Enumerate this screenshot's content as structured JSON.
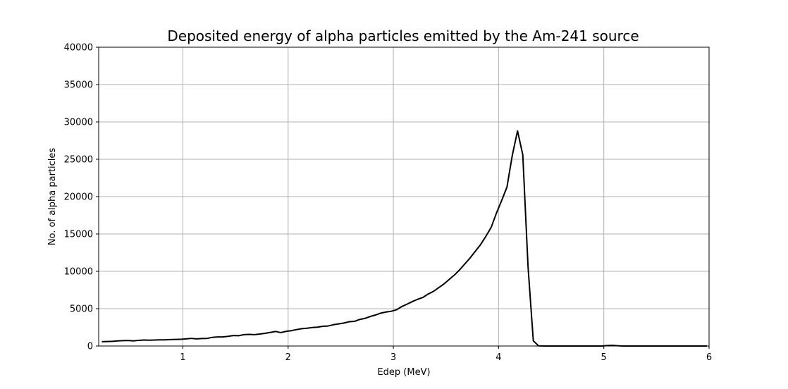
{
  "chart_data": {
    "type": "line",
    "title": "Deposited energy of alpha particles emitted by the Am-241 source",
    "xlabel": "Edep (MeV)",
    "ylabel": "No. of alpha particles",
    "xlim": [
      0.2,
      6.0
    ],
    "ylim": [
      0,
      40000
    ],
    "x_ticks": [
      1,
      2,
      3,
      4,
      5,
      6
    ],
    "y_ticks": [
      0,
      5000,
      10000,
      15000,
      20000,
      25000,
      30000,
      35000,
      40000
    ],
    "grid": true,
    "line_color": "#000000",
    "grid_color": "#b0b0b0",
    "series": [
      {
        "x": [
          0.23,
          0.28,
          0.33,
          0.38,
          0.43,
          0.48,
          0.53,
          0.58,
          0.63,
          0.68,
          0.73,
          0.78,
          0.83,
          0.88,
          0.93,
          0.98,
          1.03,
          1.08,
          1.13,
          1.18,
          1.23,
          1.28,
          1.33,
          1.38,
          1.43,
          1.48,
          1.53,
          1.58,
          1.63,
          1.68,
          1.73,
          1.78,
          1.83,
          1.88,
          1.93,
          1.98,
          2.03,
          2.08,
          2.13,
          2.18,
          2.23,
          2.28,
          2.33,
          2.38,
          2.43,
          2.48,
          2.53,
          2.58,
          2.63,
          2.68,
          2.73,
          2.78,
          2.83,
          2.88,
          2.93,
          2.98,
          3.03,
          3.08,
          3.13,
          3.18,
          3.23,
          3.28,
          3.33,
          3.38,
          3.43,
          3.48,
          3.53,
          3.58,
          3.63,
          3.68,
          3.73,
          3.78,
          3.83,
          3.88,
          3.93,
          3.98,
          4.03,
          4.08,
          4.13,
          4.18,
          4.23,
          4.28,
          4.33,
          4.38,
          4.43,
          4.48,
          4.53,
          4.58,
          4.63,
          4.68,
          4.73,
          4.78,
          4.83,
          4.88,
          4.93,
          4.98,
          5.03,
          5.08,
          5.13,
          5.18,
          5.23,
          5.28,
          5.33,
          5.38,
          5.43,
          5.48,
          5.53,
          5.58,
          5.63,
          5.68,
          5.73,
          5.78,
          5.83,
          5.88,
          5.93,
          5.98
        ],
        "values": [
          580,
          600,
          630,
          680,
          720,
          740,
          680,
          760,
          800,
          780,
          800,
          820,
          830,
          860,
          880,
          900,
          950,
          1020,
          960,
          1000,
          1020,
          1160,
          1220,
          1220,
          1300,
          1400,
          1380,
          1520,
          1560,
          1520,
          1600,
          1700,
          1820,
          1950,
          1800,
          1960,
          2050,
          2200,
          2320,
          2380,
          2480,
          2520,
          2640,
          2680,
          2850,
          2960,
          3080,
          3250,
          3300,
          3550,
          3700,
          3950,
          4150,
          4400,
          4550,
          4650,
          4850,
          5280,
          5600,
          5950,
          6250,
          6500,
          6950,
          7300,
          7800,
          8300,
          8900,
          9500,
          10200,
          11000,
          11800,
          12700,
          13600,
          14700,
          15900,
          17800,
          19500,
          21300,
          25500,
          28800,
          25600,
          10600,
          700,
          20,
          0,
          0,
          0,
          0,
          0,
          0,
          0,
          0,
          0,
          0,
          0,
          0,
          60,
          100,
          30,
          0,
          0,
          0,
          0,
          0,
          0,
          0,
          0,
          0,
          0,
          0,
          0,
          0,
          0,
          0,
          0,
          0
        ]
      }
    ]
  }
}
